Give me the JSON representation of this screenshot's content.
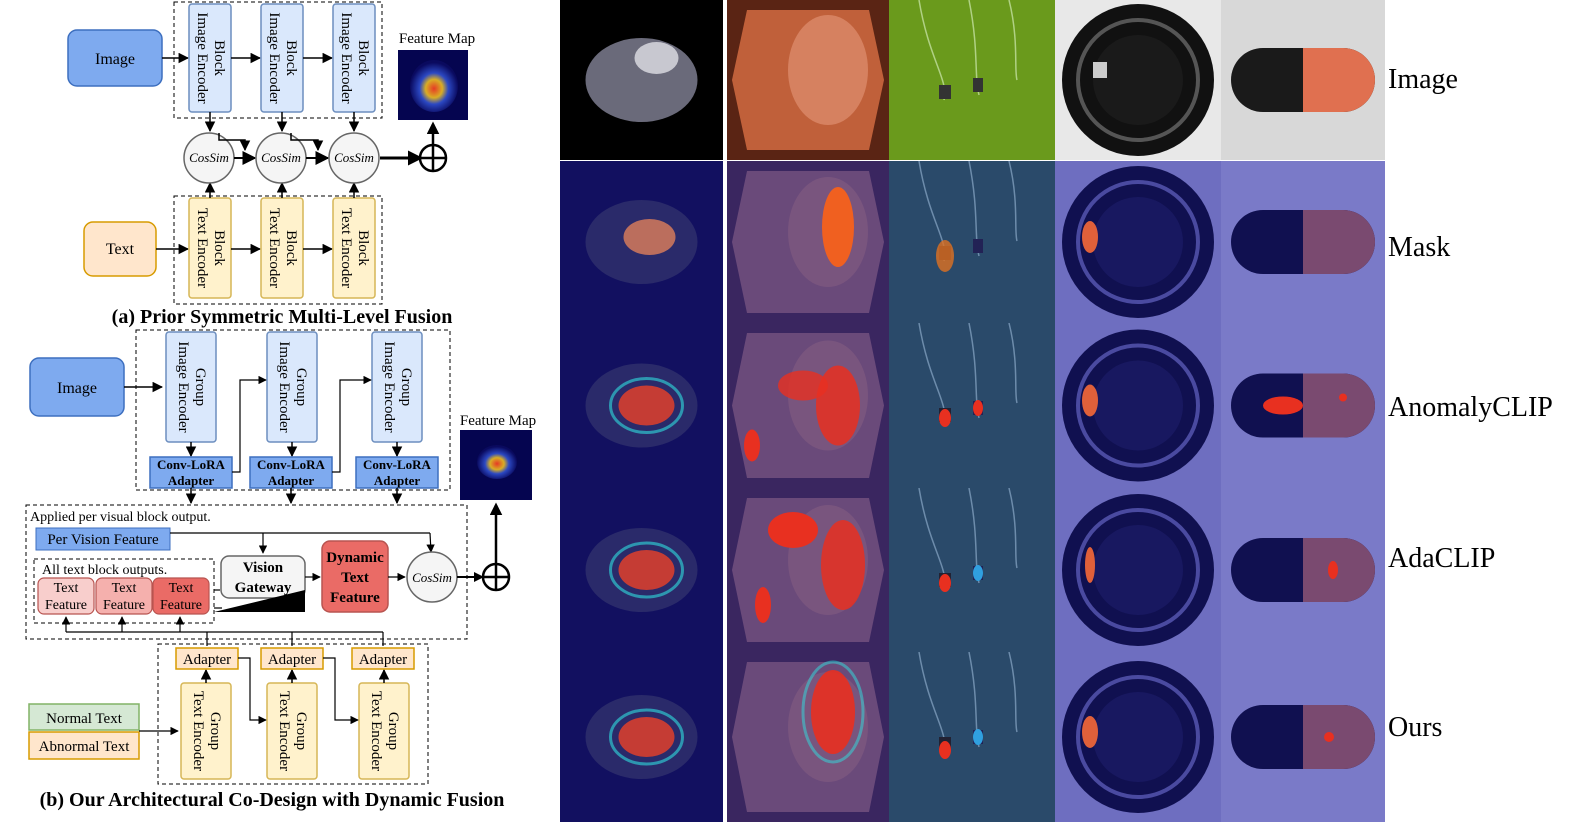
{
  "panel_a": {
    "image_box": "Image",
    "text_box": "Text",
    "image_blocks": [
      "Image Encoder Block",
      "Image Encoder Block",
      "Image Encoder Block"
    ],
    "text_blocks": [
      "Text Encoder Block",
      "Text Encoder Block",
      "Text Encoder Block"
    ],
    "cossim": "CosSim",
    "feature_map": "Feature Map",
    "caption": "(a) Prior Symmetric Multi-Level Fusion"
  },
  "panel_b": {
    "image_box": "Image",
    "image_groups": [
      "Image Encoder Group",
      "Image Encoder Group",
      "Image Encoder Group"
    ],
    "lora_adapters": [
      "Conv-LoRA Adapter",
      "Conv-LoRA Adapter",
      "Conv-LoRA Adapter"
    ],
    "applied_note": "Applied per visual block output.",
    "per_vision_feature": "Per Vision Feature",
    "all_text_note": "All text block outputs.",
    "text_features": [
      "Text Feature",
      "Text Feature",
      "Text Feature"
    ],
    "vision_gateway": "Vision Gateway",
    "dynamic_text_feature": "Dynamic Text Feature",
    "cossim": "CosSim",
    "feature_map": "Feature Map",
    "adapters": [
      "Adapter",
      "Adapter",
      "Adapter"
    ],
    "text_groups": [
      "Text Encoder Group",
      "Text Encoder Group",
      "Text Encoder Group"
    ],
    "normal_text": "Normal Text",
    "abnormal_text": "Abnormal Text",
    "caption": "(b) Our Architectural Co-Design with Dynamic Fusion"
  },
  "grid": {
    "row_labels": [
      "Image",
      "Mask",
      "AnomalyCLIP",
      "AdaCLIP",
      "Ours"
    ],
    "colors": {
      "blue_fill": "#dae8fc",
      "blue_stroke": "#6c8ebf",
      "yellow_fill": "#fff2cc",
      "yellow_stroke": "#d6b656",
      "red_fill": "#f8cecc",
      "red_stroke": "#b85450",
      "green_fill": "#d5e8d4",
      "overlay": "#3c3cc8"
    }
  }
}
